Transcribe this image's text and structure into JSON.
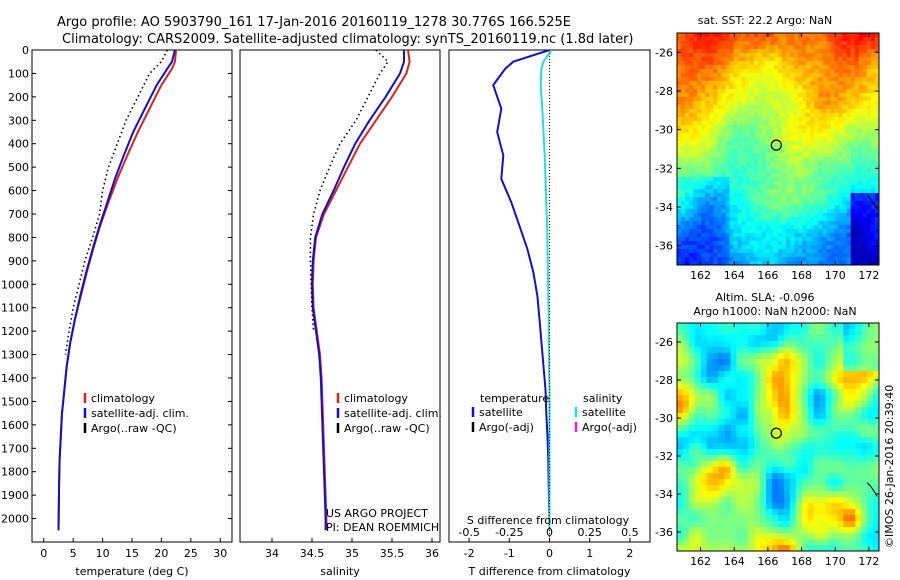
{
  "header": {
    "line1": "Argo profile: AO 5903790_161 17-Jan-2016 20160119_1278 30.776S 166.525E",
    "line2": "Climatology: CARS2009. Satellite-adjusted climatology: synTS_20160119.nc (1.8d later)"
  },
  "side_label": "©IMOS 26-Jan-2016 20:39:40",
  "chart_data": [
    {
      "type": "line",
      "id": "temperature",
      "xlabel": "temperature (deg C)",
      "ylabel": "",
      "xlim": [
        -2,
        32
      ],
      "ylim": [
        2100,
        0
      ],
      "xticks": [
        0,
        5,
        10,
        15,
        20,
        25,
        30
      ],
      "yticks": [
        0,
        100,
        200,
        300,
        400,
        500,
        600,
        700,
        800,
        900,
        1000,
        1100,
        1200,
        1300,
        1400,
        1500,
        1600,
        1700,
        1800,
        1900,
        2000
      ],
      "legend": [
        "climatology",
        "satellite-adj. clim.",
        "Argo(..raw -QC)"
      ],
      "legend_position": "lower-center",
      "series": [
        {
          "name": "climatology",
          "color": "#e02020",
          "style": "solid",
          "x": [
            22.5,
            22.3,
            21.8,
            20.0,
            18.0,
            16.0,
            14.2,
            12.5,
            11.0,
            9.6,
            8.4,
            7.3,
            6.3,
            5.3,
            4.5,
            3.9,
            3.5,
            3.1,
            2.9,
            2.7,
            2.6,
            2.55,
            2.5
          ],
          "y": [
            0,
            50,
            80,
            150,
            250,
            350,
            450,
            550,
            650,
            750,
            850,
            950,
            1050,
            1150,
            1250,
            1350,
            1450,
            1550,
            1650,
            1750,
            1850,
            1950,
            2050
          ]
        },
        {
          "name": "satellite-adj. clim.",
          "color": "#1010d0",
          "style": "solid",
          "x": [
            22.3,
            21.8,
            21.0,
            19.2,
            17.2,
            15.2,
            13.6,
            12.1,
            10.8,
            9.5,
            8.3,
            7.2,
            6.2,
            5.3,
            4.5,
            3.9,
            3.5,
            3.1,
            2.9,
            2.7,
            2.6,
            2.55,
            2.5
          ],
          "y": [
            0,
            50,
            80,
            150,
            250,
            350,
            450,
            550,
            650,
            750,
            850,
            950,
            1050,
            1150,
            1250,
            1350,
            1450,
            1550,
            1650,
            1750,
            1850,
            1950,
            2050
          ]
        },
        {
          "name": "Argo(..raw -QC)",
          "color": "#000000",
          "style": "dotted",
          "x": [
            21.0,
            20.0,
            18.0,
            16.0,
            14.0,
            12.5,
            11.0,
            10.0,
            9.5,
            8.3,
            7.0,
            6.0,
            5.0,
            4.3,
            3.7
          ],
          "y": [
            0,
            50,
            100,
            200,
            300,
            400,
            500,
            600,
            700,
            800,
            900,
            1000,
            1100,
            1200,
            1300
          ]
        }
      ]
    },
    {
      "type": "line",
      "id": "salinity",
      "xlabel": "salinity",
      "ylabel": "",
      "xlim": [
        33.6,
        36.1
      ],
      "ylim": [
        2100,
        0
      ],
      "xticks": [
        34,
        34.5,
        35,
        35.5,
        36
      ],
      "legend": [
        "climatology",
        "satellite-adj. clim.",
        "Argo(..raw -QC)"
      ],
      "legend_position": "lower-center",
      "annotations": [
        "US ARGO PROJECT",
        "PI: DEAN ROEMMICH"
      ],
      "series": [
        {
          "name": "climatology",
          "color": "#e02020",
          "style": "solid",
          "x": [
            35.7,
            35.72,
            35.68,
            35.5,
            35.3,
            35.1,
            34.95,
            34.8,
            34.65,
            34.55,
            34.52,
            34.51,
            34.52,
            34.56,
            34.6,
            34.62,
            34.63,
            34.64,
            34.65,
            34.66,
            34.67,
            34.68,
            34.68
          ],
          "y": [
            0,
            50,
            100,
            200,
            300,
            400,
            500,
            600,
            700,
            800,
            900,
            1000,
            1100,
            1200,
            1300,
            1400,
            1500,
            1600,
            1700,
            1800,
            1900,
            2000,
            2050
          ]
        },
        {
          "name": "satellite-adj. clim.",
          "color": "#1010d0",
          "style": "solid",
          "x": [
            35.65,
            35.65,
            35.6,
            35.42,
            35.22,
            35.04,
            34.9,
            34.77,
            34.63,
            34.54,
            34.51,
            34.5,
            34.51,
            34.55,
            34.59,
            34.61,
            34.62,
            34.63,
            34.64,
            34.65,
            34.66,
            34.67,
            34.67
          ],
          "y": [
            0,
            50,
            100,
            200,
            300,
            400,
            500,
            600,
            700,
            800,
            900,
            1000,
            1100,
            1200,
            1300,
            1400,
            1500,
            1600,
            1700,
            1800,
            1900,
            2000,
            2050
          ]
        },
        {
          "name": "Argo(..raw -QC)",
          "color": "#000000",
          "style": "dotted",
          "x": [
            35.3,
            35.45,
            35.35,
            35.2,
            35.05,
            34.85,
            34.72,
            34.6,
            34.52,
            34.48,
            34.48,
            34.49,
            34.5,
            34.52
          ],
          "y": [
            0,
            50,
            100,
            200,
            300,
            400,
            500,
            600,
            700,
            800,
            900,
            1000,
            1100,
            1200
          ]
        }
      ]
    },
    {
      "type": "line",
      "id": "difference",
      "xlabel": "T difference from climatology",
      "xlabel_top": "S difference from climatology",
      "xlim": [
        -2.5,
        2.5
      ],
      "ylim": [
        2100,
        0
      ],
      "xticks": [
        -2,
        -1,
        0,
        1,
        2
      ],
      "xticklabels": [
        "-2",
        "-1",
        "0",
        "1",
        "2"
      ],
      "sticks": [
        -0.5,
        -0.25,
        0,
        0.25,
        0.5
      ],
      "sticklabels": [
        "-0.5",
        "-0.25",
        "0",
        "0.25",
        "0.5"
      ],
      "legend_temperature_title": "temperature",
      "legend_salinity_title": "salinity",
      "legend_temperature": [
        "satellite",
        "Argo(-adj)"
      ],
      "legend_salinity": [
        "satellite",
        "Argo(-adj)"
      ],
      "legend_colors": {
        "t_satellite": "#1010d0",
        "t_argo": "#000000",
        "s_satellite": "#20e0e0",
        "s_argo": "#e020e0"
      },
      "series": [
        {
          "name": "T satellite",
          "color": "#1010d0",
          "style": "solid",
          "x": [
            0.0,
            -0.9,
            -1.1,
            -1.4,
            -1.2,
            -1.3,
            -1.15,
            -1.2,
            -0.95,
            -0.75,
            -0.55,
            -0.4,
            -0.3,
            -0.25,
            -0.2,
            -0.15,
            -0.1,
            -0.08,
            -0.05,
            -0.03,
            -0.02,
            -0.01,
            0.0
          ],
          "y": [
            0,
            50,
            80,
            150,
            250,
            350,
            450,
            550,
            650,
            750,
            850,
            950,
            1050,
            1150,
            1250,
            1350,
            1450,
            1550,
            1650,
            1750,
            1850,
            1950,
            2050
          ]
        },
        {
          "name": "S satellite",
          "color": "#20e0e0",
          "style": "solid",
          "x": [
            0.05,
            -0.15,
            -0.2,
            -0.22,
            -0.18,
            -0.15,
            -0.12,
            -0.1,
            -0.08,
            -0.06,
            -0.05,
            -0.04,
            -0.03,
            -0.02,
            -0.02,
            -0.01,
            0.0,
            0.0,
            0.0,
            0.0,
            0.0,
            0.0,
            0.0
          ],
          "y": [
            0,
            50,
            80,
            150,
            250,
            350,
            450,
            550,
            650,
            750,
            850,
            950,
            1050,
            1150,
            1250,
            1350,
            1450,
            1550,
            1650,
            1750,
            1850,
            1950,
            2050
          ]
        }
      ]
    },
    {
      "type": "heatmap",
      "id": "sst_map",
      "title": "sat. SST: 22.2  Argo: NaN",
      "xlim": [
        160.6,
        172.6
      ],
      "ylim": [
        -37,
        -25
      ],
      "xticks": [
        162,
        164,
        166,
        168,
        170,
        172
      ],
      "yticks": [
        -26,
        -28,
        -30,
        -32,
        -34,
        -36
      ],
      "marker": {
        "lon": 166.5,
        "lat": -30.8
      }
    },
    {
      "type": "heatmap",
      "id": "sla_map",
      "title_line1": "Altim. SLA: -0.096",
      "title_line2": "Argo h1000: NaN h2000: NaN",
      "xlim": [
        160.6,
        172.6
      ],
      "ylim": [
        -37,
        -25
      ],
      "xticks": [
        162,
        164,
        166,
        168,
        170,
        172
      ],
      "yticks": [
        -26,
        -28,
        -30,
        -32,
        -34,
        -36
      ],
      "marker": {
        "lon": 166.5,
        "lat": -30.8
      }
    }
  ]
}
